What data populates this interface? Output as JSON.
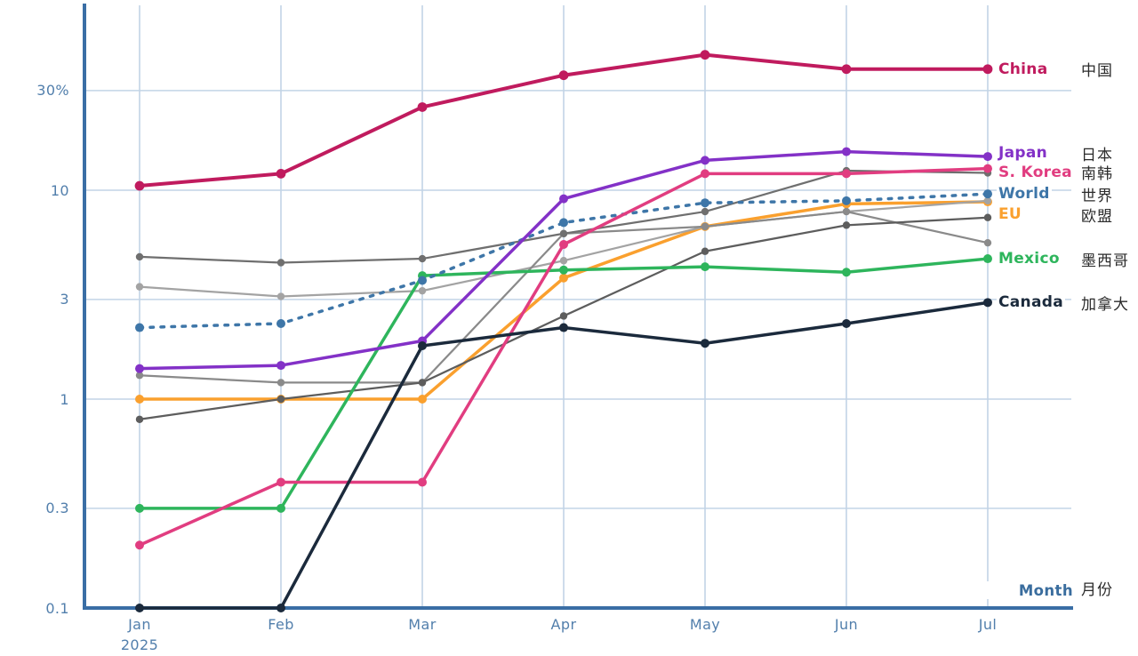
{
  "chart_data": {
    "type": "line",
    "title": "",
    "y_scale": "log",
    "grid": true,
    "ylim": [
      0.1,
      60
    ],
    "x_categories": [
      "Jan",
      "Feb",
      "Mar",
      "Apr",
      "May",
      "Jun",
      "Jul"
    ],
    "x_year": "2025",
    "xlabel": "Month",
    "xlabel_zh": "月份",
    "y_ticks": [
      {
        "label": "30%",
        "value": 30
      },
      {
        "label": "10",
        "value": 10
      },
      {
        "label": "3",
        "value": 3
      },
      {
        "label": "1",
        "value": 1
      },
      {
        "label": "0.3",
        "value": 0.3
      },
      {
        "label": "0.1",
        "value": 0.1
      }
    ],
    "colors": {
      "axis": "#3A6EA5",
      "grid": "#C2D4E6",
      "tick_text": "#527FAC"
    },
    "series": [
      {
        "id": "china",
        "name": "China",
        "name_zh": "中国",
        "color": "#C01B5E",
        "dashed": false,
        "labeled": true,
        "label_dy": 0,
        "values": [
          10.5,
          12,
          25,
          35.5,
          44.5,
          38,
          38
        ]
      },
      {
        "id": "japan",
        "name": "Japan",
        "name_zh": "日本",
        "color": "#8331C7",
        "dashed": false,
        "labeled": true,
        "label_dy": -4,
        "values": [
          1.4,
          1.45,
          1.9,
          9.1,
          13.9,
          15.3,
          14.5
        ]
      },
      {
        "id": "s-korea",
        "name": "S. Korea",
        "name_zh": "南韩",
        "color": "#E13D80",
        "dashed": false,
        "labeled": true,
        "label_dy": 4,
        "values": [
          0.2,
          0.4,
          0.4,
          5.5,
          12,
          12,
          12.7
        ]
      },
      {
        "id": "world",
        "name": "World",
        "name_zh": "世界",
        "color": "#3E76A8",
        "dashed": true,
        "labeled": true,
        "label_dy": 0,
        "values": [
          2.2,
          2.3,
          3.7,
          7.0,
          8.7,
          8.9,
          9.6
        ]
      },
      {
        "id": "eu",
        "name": "EU",
        "name_zh": "欧盟",
        "color": "#FAA02E",
        "dashed": false,
        "labeled": true,
        "label_dy": 14,
        "values": [
          1.0,
          1.0,
          1.0,
          3.8,
          6.7,
          8.6,
          8.8
        ]
      },
      {
        "id": "mexico",
        "name": "Mexico",
        "name_zh": "墨西哥",
        "color": "#2EB55C",
        "dashed": false,
        "labeled": true,
        "label_dy": 0,
        "values": [
          0.3,
          0.3,
          3.9,
          4.15,
          4.3,
          4.05,
          4.7
        ]
      },
      {
        "id": "canada",
        "name": "Canada",
        "name_zh": "加拿大",
        "color": "#1B2A3C",
        "dashed": false,
        "labeled": true,
        "label_dy": 0,
        "values": [
          0.1,
          0.1,
          1.8,
          2.2,
          1.85,
          2.3,
          2.9
        ]
      },
      {
        "id": "gray-1",
        "name": "",
        "name_zh": "",
        "color": "#6F6F6F",
        "dashed": false,
        "labeled": false,
        "label_dy": 0,
        "values": [
          4.8,
          4.5,
          4.7,
          6.2,
          7.9,
          12.4,
          12.1
        ]
      },
      {
        "id": "gray-2",
        "name": "",
        "name_zh": "",
        "color": "#A3A3A3",
        "dashed": false,
        "labeled": false,
        "label_dy": 0,
        "values": [
          3.45,
          3.1,
          3.3,
          4.6,
          6.7,
          7.9,
          8.9
        ]
      },
      {
        "id": "gray-3",
        "name": "",
        "name_zh": "",
        "color": "#8A8A8A",
        "dashed": false,
        "labeled": false,
        "label_dy": 0,
        "values": [
          1.3,
          1.2,
          1.2,
          6.2,
          6.7,
          7.9,
          5.6
        ]
      },
      {
        "id": "gray-4",
        "name": "",
        "name_zh": "",
        "color": "#5D5D5D",
        "dashed": false,
        "labeled": false,
        "label_dy": 0,
        "values": [
          0.8,
          1.0,
          1.2,
          2.5,
          5.1,
          6.8,
          7.4
        ]
      }
    ]
  }
}
